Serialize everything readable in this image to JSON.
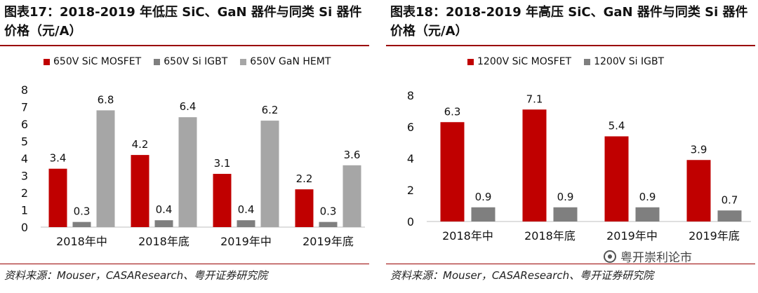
{
  "left": {
    "title": "图表17：2018-2019 年低压 SiC、GaN 器件与同类 Si 器件价格（元/A）",
    "source": "资料来源：Mouser，CASAResearch、粤开证券研究院",
    "legend": [
      {
        "label": "650V SiC MOSFET",
        "color": "#c00000"
      },
      {
        "label": "650V Si IGBT",
        "color": "#7f7f7f"
      },
      {
        "label": "650V GaN HEMT",
        "color": "#a6a6a6"
      }
    ]
  },
  "right": {
    "title": "图表18：2018-2019 年高压 SiC、GaN 器件与同类 Si 器件价格（元/A）",
    "source": "资料来源：Mouser，CASAResearch、粤开证券研究院",
    "legend": [
      {
        "label": "1200V SiC MOSFET",
        "color": "#c00000"
      },
      {
        "label": "1200V Si IGBT",
        "color": "#7f7f7f"
      }
    ]
  },
  "watermark": {
    "text": "粤开崇利论市"
  },
  "chart_data": [
    {
      "type": "bar",
      "title": "图表17：2018-2019 年低压 SiC、GaN 器件与同类 Si 器件价格（元/A）",
      "categories": [
        "2018年中",
        "2018年底",
        "2019年中",
        "2019年底"
      ],
      "series": [
        {
          "name": "650V SiC MOSFET",
          "values": [
            3.4,
            4.2,
            3.1,
            2.2
          ],
          "color": "#c00000"
        },
        {
          "name": "650V Si IGBT",
          "values": [
            0.3,
            0.4,
            0.4,
            0.3
          ],
          "color": "#7f7f7f"
        },
        {
          "name": "650V GaN HEMT",
          "values": [
            6.8,
            6.4,
            6.2,
            3.6
          ],
          "color": "#a6a6a6"
        }
      ],
      "yticks": [
        0,
        1,
        2,
        3,
        4,
        5,
        6,
        7,
        8
      ],
      "ylim": [
        0,
        8
      ],
      "grid": false,
      "legend_position": "top"
    },
    {
      "type": "bar",
      "title": "图表18：2018-2019 年高压 SiC、GaN 器件与同类 Si 器件价格（元/A）",
      "categories": [
        "2018年中",
        "2018年底",
        "2019年中",
        "2019年底"
      ],
      "series": [
        {
          "name": "1200V SiC MOSFET",
          "values": [
            6.3,
            7.1,
            5.4,
            3.9
          ],
          "color": "#c00000"
        },
        {
          "name": "1200V Si IGBT",
          "values": [
            0.9,
            0.9,
            0.9,
            0.7
          ],
          "color": "#7f7f7f"
        }
      ],
      "yticks": [
        0,
        2,
        4,
        6,
        8
      ],
      "ylim": [
        0,
        8
      ],
      "grid": false,
      "legend_position": "top"
    }
  ]
}
